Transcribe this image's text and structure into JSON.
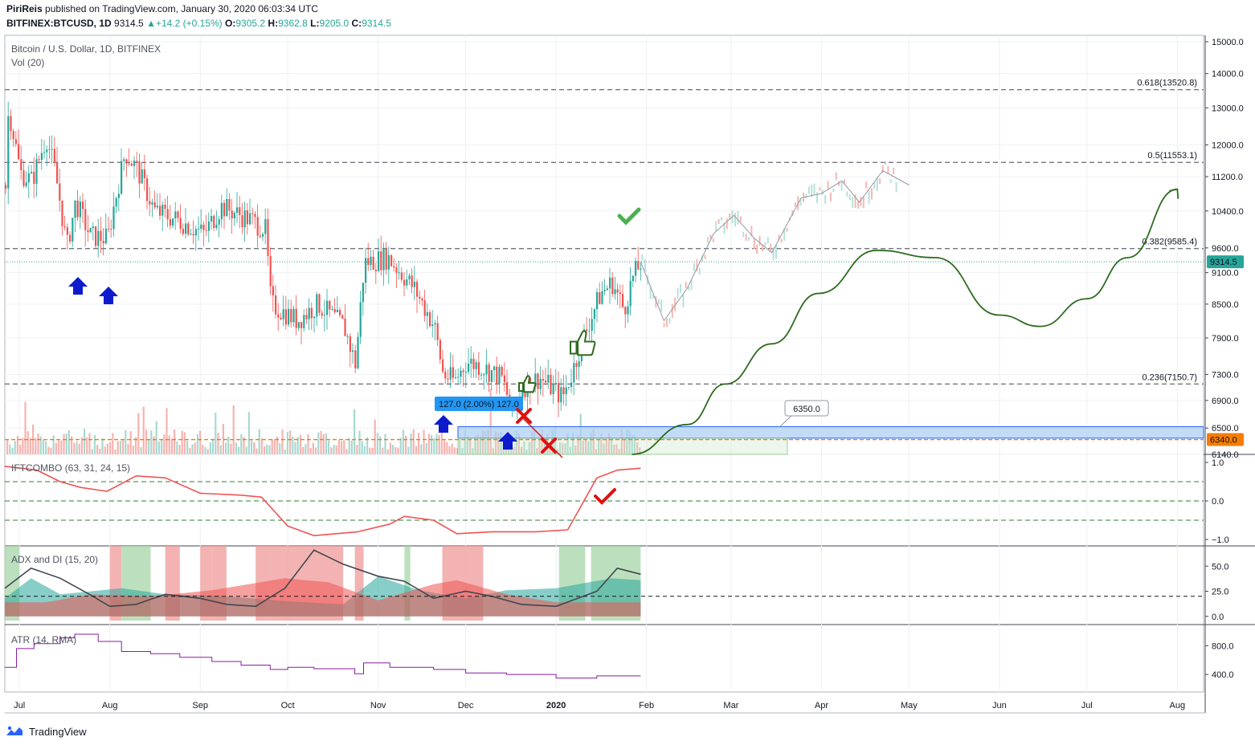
{
  "header": {
    "publisher": "PiriReis",
    "published_text": "published on TradingView.com, January 30, 2020 06:03:34 UTC",
    "symbol": "BITFINEX:BTCUSD, 1D",
    "last": "9314.5",
    "change": "+14.2 (+0.15%)",
    "open_label": "O:",
    "open": "9305.2",
    "high_label": "H:",
    "high": "9362.8",
    "low_label": "L:",
    "low": "9205.0",
    "close_label": "C:",
    "close": "9314.5"
  },
  "footer": {
    "brand": "TradingView"
  },
  "colors": {
    "up": "#26a69a",
    "down": "#ef5350",
    "volume_up": "#a8d9d1",
    "volume_down": "#f7b3b0",
    "projection": "#2e6b1f",
    "ift": "#f05454",
    "adx": "#434651",
    "atr": "#8a1aa3",
    "price_label": "#26a69a",
    "level_label": "#f57c00",
    "arrow": "#0d1bcc",
    "cross": "#e01010"
  },
  "chart_data": [
    {
      "type": "candlestick",
      "title": "Bitcoin / U.S. Dollar, 1D, BITFINEX",
      "subtitle": "Vol (20)",
      "x_ticks": [
        "Jul",
        "Aug",
        "Sep",
        "Oct",
        "Nov",
        "Dec",
        "2020",
        "Feb",
        "Mar",
        "Apr",
        "May",
        "Jun",
        "Jul",
        "Aug"
      ],
      "y_ticks": [
        "15000.0",
        "14000.0",
        "13000.0",
        "12000.0",
        "11200.0",
        "10400.0",
        "9600.0",
        "9100.0",
        "8500.0",
        "7900.0",
        "7300.0",
        "6900.0",
        "6500.0",
        "6140.0"
      ],
      "ylim": [
        6140,
        15000
      ],
      "scale": "log",
      "last_price_label": "9314.5",
      "level_label": "6340.0",
      "fib_levels": [
        {
          "label": "0.618(13520.8)",
          "value": 13520.8
        },
        {
          "label": "0.5(11553.1)",
          "value": 11553.1
        },
        {
          "label": "0.382(9585.4)",
          "value": 9585.4
        },
        {
          "label": "0.236(7150.7)",
          "value": 7150.7
        }
      ],
      "annotations": {
        "measure": "127.0 (2.00%) 127.0",
        "callout": "6350.0"
      },
      "price_path": [
        {
          "date": "2019-06-26",
          "value": 11000
        },
        {
          "date": "2019-06-27",
          "value": 13000
        },
        {
          "date": "2019-07-01",
          "value": 11300
        },
        {
          "date": "2019-07-05",
          "value": 11100
        },
        {
          "date": "2019-07-10",
          "value": 12200
        },
        {
          "date": "2019-07-13",
          "value": 11300
        },
        {
          "date": "2019-07-17",
          "value": 9600
        },
        {
          "date": "2019-07-20",
          "value": 10600
        },
        {
          "date": "2019-07-25",
          "value": 9850
        },
        {
          "date": "2019-07-31",
          "value": 9800
        },
        {
          "date": "2019-08-06",
          "value": 11800
        },
        {
          "date": "2019-08-10",
          "value": 11400
        },
        {
          "date": "2019-08-16",
          "value": 10400
        },
        {
          "date": "2019-08-24",
          "value": 10200
        },
        {
          "date": "2019-09-02",
          "value": 9900
        },
        {
          "date": "2019-09-08",
          "value": 10500
        },
        {
          "date": "2019-09-18",
          "value": 10200
        },
        {
          "date": "2019-09-23",
          "value": 10000
        },
        {
          "date": "2019-09-25",
          "value": 8500
        },
        {
          "date": "2019-10-04",
          "value": 8200
        },
        {
          "date": "2019-10-11",
          "value": 8500
        },
        {
          "date": "2019-10-20",
          "value": 8100
        },
        {
          "date": "2019-10-24",
          "value": 7450
        },
        {
          "date": "2019-10-27",
          "value": 9300
        },
        {
          "date": "2019-11-04",
          "value": 9400
        },
        {
          "date": "2019-11-13",
          "value": 8800
        },
        {
          "date": "2019-11-20",
          "value": 8100
        },
        {
          "date": "2019-11-23",
          "value": 7300
        },
        {
          "date": "2019-11-27",
          "value": 7200
        },
        {
          "date": "2019-12-01",
          "value": 7500
        },
        {
          "date": "2019-12-05",
          "value": 7450
        },
        {
          "date": "2019-12-13",
          "value": 7250
        },
        {
          "date": "2019-12-17",
          "value": 6700
        },
        {
          "date": "2019-12-20",
          "value": 7100
        },
        {
          "date": "2019-12-26",
          "value": 7250
        },
        {
          "date": "2020-01-03",
          "value": 6950
        },
        {
          "date": "2020-01-06",
          "value": 7300
        },
        {
          "date": "2020-01-10",
          "value": 7900
        },
        {
          "date": "2020-01-16",
          "value": 8700
        },
        {
          "date": "2020-01-20",
          "value": 8900
        },
        {
          "date": "2020-01-24",
          "value": 8400
        },
        {
          "date": "2020-01-27",
          "value": 9000
        },
        {
          "date": "2020-01-30",
          "value": 9314.5
        }
      ],
      "ghost_path": [
        {
          "date": "2020-01-30",
          "value": 9314.5
        },
        {
          "date": "2020-02-07",
          "value": 8200
        },
        {
          "date": "2020-02-15",
          "value": 8800
        },
        {
          "date": "2020-02-24",
          "value": 9900
        },
        {
          "date": "2020-03-02",
          "value": 10300
        },
        {
          "date": "2020-03-09",
          "value": 9800
        },
        {
          "date": "2020-03-15",
          "value": 9500
        },
        {
          "date": "2020-03-25",
          "value": 10700
        },
        {
          "date": "2020-04-01",
          "value": 10800
        },
        {
          "date": "2020-04-08",
          "value": 11100
        },
        {
          "date": "2020-04-14",
          "value": 10600
        },
        {
          "date": "2020-04-22",
          "value": 11350
        },
        {
          "date": "2020-05-01",
          "value": 11000
        }
      ],
      "projection_path": [
        {
          "date": "2020-01-27",
          "value": 6140
        },
        {
          "date": "2020-02-15",
          "value": 6550
        },
        {
          "date": "2020-02-28",
          "value": 7150
        },
        {
          "date": "2020-03-15",
          "value": 7800
        },
        {
          "date": "2020-03-31",
          "value": 8700
        },
        {
          "date": "2020-04-20",
          "value": 9550
        },
        {
          "date": "2020-05-10",
          "value": 9400
        },
        {
          "date": "2020-06-01",
          "value": 8300
        },
        {
          "date": "2020-06-15",
          "value": 8100
        },
        {
          "date": "2020-07-01",
          "value": 8600
        },
        {
          "date": "2020-07-15",
          "value": 9400
        },
        {
          "date": "2020-08-01",
          "value": 10900
        }
      ]
    },
    {
      "type": "line",
      "title": "IFTCOMBO (63, 31, 24, 15)",
      "y_ticks": [
        "1.0",
        "0.0",
        "−1.0"
      ],
      "ylim": [
        -1,
        1
      ],
      "levels": [
        0.5,
        0,
        -0.5
      ],
      "series": [
        {
          "values": [
            {
              "date": "2019-06-26",
              "value": 0.9
            },
            {
              "date": "2019-07-07",
              "value": 0.8
            },
            {
              "date": "2019-07-15",
              "value": 0.5
            },
            {
              "date": "2019-07-22",
              "value": 0.35
            },
            {
              "date": "2019-07-31",
              "value": 0.25
            },
            {
              "date": "2019-08-10",
              "value": 0.65
            },
            {
              "date": "2019-08-20",
              "value": 0.6
            },
            {
              "date": "2019-09-01",
              "value": 0.2
            },
            {
              "date": "2019-09-15",
              "value": 0.15
            },
            {
              "date": "2019-09-22",
              "value": 0.1
            },
            {
              "date": "2019-10-01",
              "value": -0.65
            },
            {
              "date": "2019-10-10",
              "value": -0.9
            },
            {
              "date": "2019-10-25",
              "value": -0.8
            },
            {
              "date": "2019-11-05",
              "value": -0.6
            },
            {
              "date": "2019-11-10",
              "value": -0.4
            },
            {
              "date": "2019-11-20",
              "value": -0.5
            },
            {
              "date": "2019-11-28",
              "value": -0.85
            },
            {
              "date": "2019-12-10",
              "value": -0.8
            },
            {
              "date": "2019-12-25",
              "value": -0.8
            },
            {
              "date": "2020-01-05",
              "value": -0.75
            },
            {
              "date": "2020-01-15",
              "value": 0.6
            },
            {
              "date": "2020-01-22",
              "value": 0.8
            },
            {
              "date": "2020-01-30",
              "value": 0.85
            }
          ]
        }
      ]
    },
    {
      "type": "area",
      "title": "ADX and DI (15, 20)",
      "y_ticks": [
        "50.0",
        "25.0",
        "0.0"
      ],
      "ylim": [
        -5,
        67
      ],
      "level": 20,
      "series": [
        {
          "values": [
            {
              "date": "2019-06-26",
              "value": 28
            },
            {
              "date": "2019-07-05",
              "value": 48
            },
            {
              "date": "2019-07-15",
              "value": 38
            },
            {
              "date": "2019-07-25",
              "value": 22
            },
            {
              "date": "2019-08-01",
              "value": 10
            },
            {
              "date": "2019-08-10",
              "value": 12
            },
            {
              "date": "2019-08-20",
              "value": 22
            },
            {
              "date": "2019-09-01",
              "value": 18
            },
            {
              "date": "2019-09-10",
              "value": 12
            },
            {
              "date": "2019-09-20",
              "value": 10
            },
            {
              "date": "2019-09-30",
              "value": 28
            },
            {
              "date": "2019-10-10",
              "value": 66
            },
            {
              "date": "2019-10-20",
              "value": 52
            },
            {
              "date": "2019-11-01",
              "value": 40
            },
            {
              "date": "2019-11-10",
              "value": 35
            },
            {
              "date": "2019-11-20",
              "value": 18
            },
            {
              "date": "2019-12-01",
              "value": 25
            },
            {
              "date": "2019-12-10",
              "value": 20
            },
            {
              "date": "2019-12-20",
              "value": 12
            },
            {
              "date": "2020-01-01",
              "value": 10
            },
            {
              "date": "2020-01-15",
              "value": 25
            },
            {
              "date": "2020-01-22",
              "value": 48
            },
            {
              "date": "2020-01-30",
              "value": 42
            }
          ]
        },
        {
          "values": [
            {
              "date": "2019-06-26",
              "value": 18
            },
            {
              "date": "2019-07-05",
              "value": 38
            },
            {
              "date": "2019-07-15",
              "value": 22
            },
            {
              "date": "2019-08-05",
              "value": 28
            },
            {
              "date": "2019-08-20",
              "value": 22
            },
            {
              "date": "2019-09-10",
              "value": 20
            },
            {
              "date": "2019-10-01",
              "value": 15
            },
            {
              "date": "2019-10-20",
              "value": 12
            },
            {
              "date": "2019-11-01",
              "value": 40
            },
            {
              "date": "2019-11-15",
              "value": 26
            },
            {
              "date": "2019-12-01",
              "value": 18
            },
            {
              "date": "2019-12-15",
              "value": 26
            },
            {
              "date": "2020-01-01",
              "value": 28
            },
            {
              "date": "2020-01-20",
              "value": 38
            },
            {
              "date": "2020-01-30",
              "value": 36
            }
          ]
        },
        {
          "values": [
            {
              "date": "2019-06-26",
              "value": 14
            },
            {
              "date": "2019-07-10",
              "value": 14
            },
            {
              "date": "2019-07-25",
              "value": 22
            },
            {
              "date": "2019-08-15",
              "value": 20
            },
            {
              "date": "2019-09-05",
              "value": 26
            },
            {
              "date": "2019-09-30",
              "value": 38
            },
            {
              "date": "2019-10-15",
              "value": 34
            },
            {
              "date": "2019-11-01",
              "value": 16
            },
            {
              "date": "2019-11-20",
              "value": 32
            },
            {
              "date": "2019-11-28",
              "value": 36
            },
            {
              "date": "2019-12-15",
              "value": 22
            },
            {
              "date": "2020-01-01",
              "value": 14
            },
            {
              "date": "2020-01-30",
              "value": 14
            }
          ]
        }
      ]
    },
    {
      "type": "line",
      "title": "ATR (14, RMA)",
      "y_ticks": [
        "800.0",
        "400.0"
      ],
      "ylim": [
        200,
        1050
      ],
      "series": [
        {
          "values": [
            {
              "date": "2019-06-26",
              "value": 500
            },
            {
              "date": "2019-06-30",
              "value": 760
            },
            {
              "date": "2019-07-06",
              "value": 830
            },
            {
              "date": "2019-07-15",
              "value": 910
            },
            {
              "date": "2019-07-20",
              "value": 960
            },
            {
              "date": "2019-07-28",
              "value": 860
            },
            {
              "date": "2019-08-05",
              "value": 720
            },
            {
              "date": "2019-08-15",
              "value": 690
            },
            {
              "date": "2019-08-25",
              "value": 640
            },
            {
              "date": "2019-09-05",
              "value": 580
            },
            {
              "date": "2019-09-15",
              "value": 530
            },
            {
              "date": "2019-09-25",
              "value": 470
            },
            {
              "date": "2019-10-01",
              "value": 500
            },
            {
              "date": "2019-10-10",
              "value": 480
            },
            {
              "date": "2019-10-24",
              "value": 410
            },
            {
              "date": "2019-10-27",
              "value": 560
            },
            {
              "date": "2019-11-05",
              "value": 500
            },
            {
              "date": "2019-11-20",
              "value": 470
            },
            {
              "date": "2019-12-01",
              "value": 420
            },
            {
              "date": "2019-12-15",
              "value": 400
            },
            {
              "date": "2020-01-01",
              "value": 350
            },
            {
              "date": "2020-01-15",
              "value": 380
            },
            {
              "date": "2020-01-30",
              "value": 380
            }
          ]
        }
      ]
    }
  ]
}
